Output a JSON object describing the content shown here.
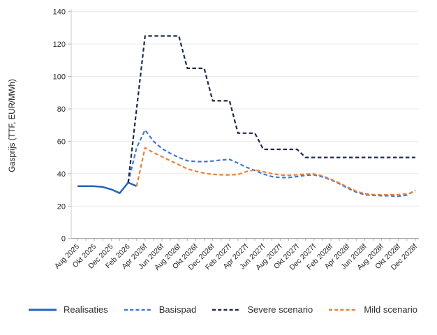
{
  "chart_data": {
    "type": "line",
    "title": "",
    "xlabel": "",
    "ylabel": "Gasprijs (TTF, EUR/MWh)",
    "ylim": [
      0,
      140
    ],
    "y_ticks": [
      0,
      20,
      40,
      60,
      80,
      100,
      120,
      140
    ],
    "grid": "horizontal-light",
    "legend_position": "bottom",
    "n_points": 41,
    "x_tick_every": 2,
    "x_tick_labels": [
      "Aug 2025",
      "Okt 2025",
      "Dec 2025",
      "Feb 2026",
      "Apr 2026f",
      "Jun 2026f",
      "Aug 2026f",
      "Okt 2026f",
      "Dec 2026f",
      "Feb 2027f",
      "Apr 2027f",
      "Jun 2027f",
      "Aug 2027f",
      "Okt 2027f",
      "Dec 2027f",
      "Feb 2028f",
      "Apr 2028f",
      "Jun 2028f",
      "Aug 2028f",
      "Okt 2028f",
      "Dec 2028f"
    ],
    "series": [
      {
        "name": "Realisaties",
        "color": "#2563BD",
        "style": "solid",
        "start_index": 0,
        "values": [
          32.3,
          32.3,
          32.2,
          31.8,
          30.3,
          28.0,
          34.5,
          32.3
        ]
      },
      {
        "name": "Basispad",
        "color": "#3D7AD3",
        "style": "dashed",
        "start_index": 6,
        "values": [
          34.5,
          56,
          67,
          60,
          55.5,
          52.5,
          50,
          48,
          47.5,
          47.4,
          47.8,
          48.4,
          48.8,
          46.5,
          44,
          42,
          39.8,
          38.2,
          37.6,
          37.6,
          38.2,
          39,
          39.3,
          38,
          36.2,
          33.8,
          31,
          28.6,
          27,
          26.6,
          26.4,
          26.3,
          26,
          26.8,
          29.8
        ]
      },
      {
        "name": "Severe scenario",
        "color": "#20294E",
        "style": "dashed",
        "start_index": 6,
        "values": [
          34.5,
          80,
          125,
          125,
          125,
          125,
          125,
          105,
          105,
          105,
          85,
          85,
          85,
          65,
          65,
          65,
          55,
          55,
          55,
          55,
          55,
          50,
          50,
          50,
          50,
          50,
          50,
          50,
          50,
          50,
          50,
          50,
          50,
          50,
          50
        ]
      },
      {
        "name": "Mild scenario",
        "color": "#E8803A",
        "style": "dashed",
        "start_index": 7,
        "values": [
          32.3,
          56,
          53,
          50.5,
          48,
          45.5,
          43,
          41.5,
          40.3,
          39.6,
          39.3,
          39.2,
          39.5,
          41.3,
          42.4,
          41.2,
          40,
          39.2,
          39,
          39.3,
          39.8,
          39.8,
          38.6,
          36.6,
          34.2,
          31.6,
          29.2,
          27.6,
          27.1,
          27,
          27,
          27.1,
          27.5,
          28.8
        ]
      }
    ],
    "colors": {
      "grid_line": "#e9e9e6",
      "x_axis_line": "#9e9e9c",
      "y_axis_line": "#c9c9c6",
      "tick_mark": "#b3b3b0",
      "tick_label": "#262626",
      "axis_title": "#1a1a1a"
    }
  },
  "legend": {
    "items": [
      {
        "label": "Realisaties"
      },
      {
        "label": "Basispad"
      },
      {
        "label": "Severe scenario"
      },
      {
        "label": "Mild scenario"
      }
    ]
  }
}
